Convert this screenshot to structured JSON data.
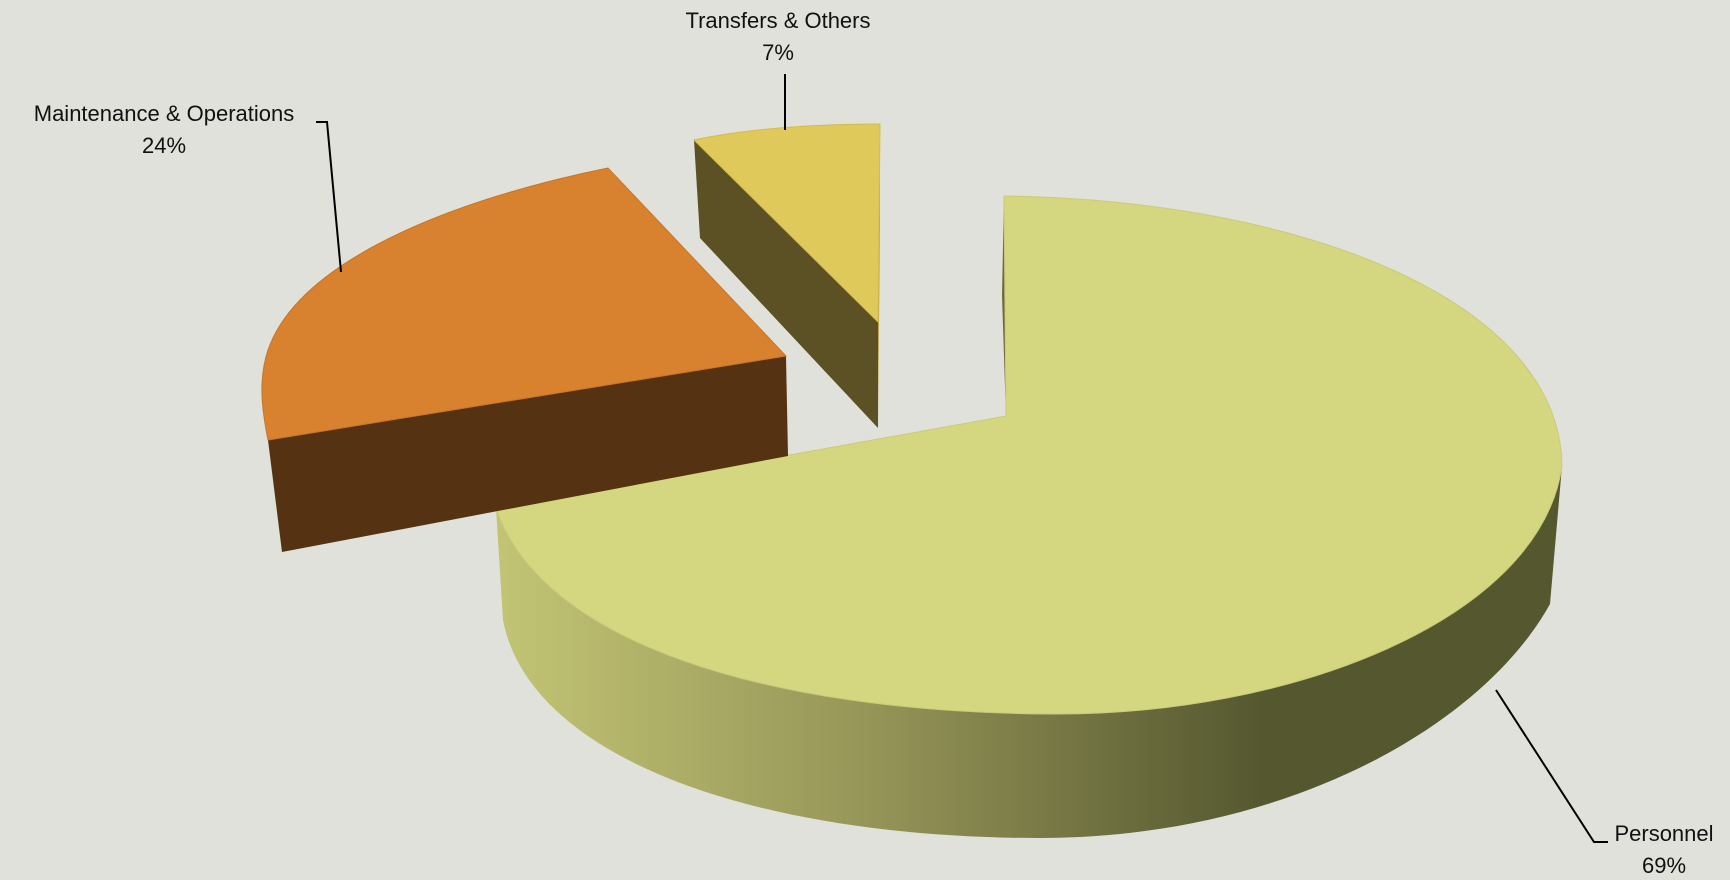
{
  "chart_data": {
    "type": "pie",
    "style": "3d-exploded",
    "legend": "none",
    "slices": [
      {
        "name": "Personnel",
        "label": "Personnel",
        "percent_label": "69%",
        "value": 69,
        "color": "#d4d77f",
        "side_dark": "#58582f",
        "side_light": "#b9b96c"
      },
      {
        "name": "Maintenance & Operations",
        "label": "Maintenance & Operations",
        "percent_label": "24%",
        "value": 24,
        "color": "#d8822f",
        "side_dark": "#553211",
        "side_light": "#c47025"
      },
      {
        "name": "Transfers & Others",
        "label": "Transfers & Others",
        "percent_label": "7%",
        "value": 7,
        "color": "#dfc95a",
        "side_dark": "#5c5124",
        "side_light": "#b9a44a"
      }
    ]
  }
}
